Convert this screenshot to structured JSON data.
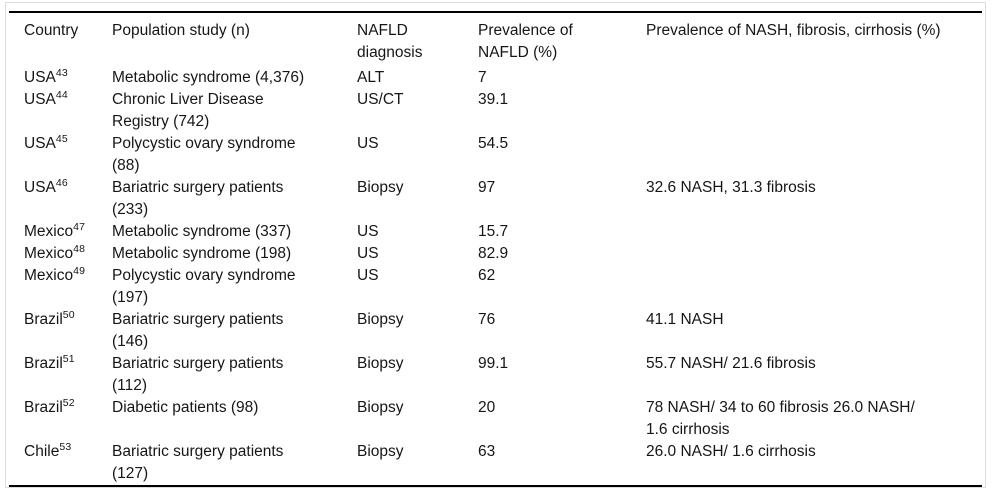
{
  "table": {
    "columns": [
      "Country",
      "Population study (n)",
      "NAFLD\ndiagnosis",
      "Prevalence of\nNAFLD (%)",
      "Prevalence of NASH, fibrosis, cirrhosis (%)"
    ],
    "rows": [
      {
        "country": "USA",
        "ref": "43",
        "study": "Metabolic syndrome (4,376)",
        "diagnosis": "ALT",
        "prevalence_nafld": "7",
        "prevalence_nash": ""
      },
      {
        "country": "USA",
        "ref": "44",
        "study": "Chronic Liver Disease\nRegistry (742)",
        "diagnosis": "US/CT",
        "prevalence_nafld": "39.1",
        "prevalence_nash": ""
      },
      {
        "country": "USA",
        "ref": "45",
        "study": "Polycystic ovary syndrome\n(88)",
        "diagnosis": "US",
        "prevalence_nafld": "54.5",
        "prevalence_nash": ""
      },
      {
        "country": "USA",
        "ref": "46",
        "study": "Bariatric surgery patients\n(233)",
        "diagnosis": "Biopsy",
        "prevalence_nafld": "97",
        "prevalence_nash": "32.6 NASH, 31.3 fibrosis"
      },
      {
        "country": "Mexico",
        "ref": "47",
        "study": "Metabolic syndrome (337)",
        "diagnosis": "US",
        "prevalence_nafld": "15.7",
        "prevalence_nash": ""
      },
      {
        "country": "Mexico",
        "ref": "48",
        "study": "Metabolic syndrome (198)",
        "diagnosis": "US",
        "prevalence_nafld": "82.9",
        "prevalence_nash": ""
      },
      {
        "country": "Mexico",
        "ref": "49",
        "study": "Polycystic ovary syndrome\n(197)",
        "diagnosis": "US",
        "prevalence_nafld": "62",
        "prevalence_nash": ""
      },
      {
        "country": "Brazil",
        "ref": "50",
        "study": "Bariatric surgery patients\n(146)",
        "diagnosis": "Biopsy",
        "prevalence_nafld": "76",
        "prevalence_nash": "41.1 NASH"
      },
      {
        "country": "Brazil",
        "ref": "51",
        "study": "Bariatric surgery patients\n(112)",
        "diagnosis": "Biopsy",
        "prevalence_nafld": "99.1",
        "prevalence_nash": "55.7 NASH/ 21.6 fibrosis"
      },
      {
        "country": "Brazil",
        "ref": "52",
        "study": "Diabetic patients (98)",
        "diagnosis": "Biopsy",
        "prevalence_nafld": "20",
        "prevalence_nash": "78 NASH/ 34 to 60 fibrosis 26.0 NASH/\n1.6 cirrhosis"
      },
      {
        "country": "Chile",
        "ref": "53",
        "study": "Bariatric surgery patients\n(127)",
        "diagnosis": "Biopsy",
        "prevalence_nafld": "63",
        "prevalence_nash": "26.0 NASH/ 1.6 cirrhosis"
      }
    ]
  }
}
